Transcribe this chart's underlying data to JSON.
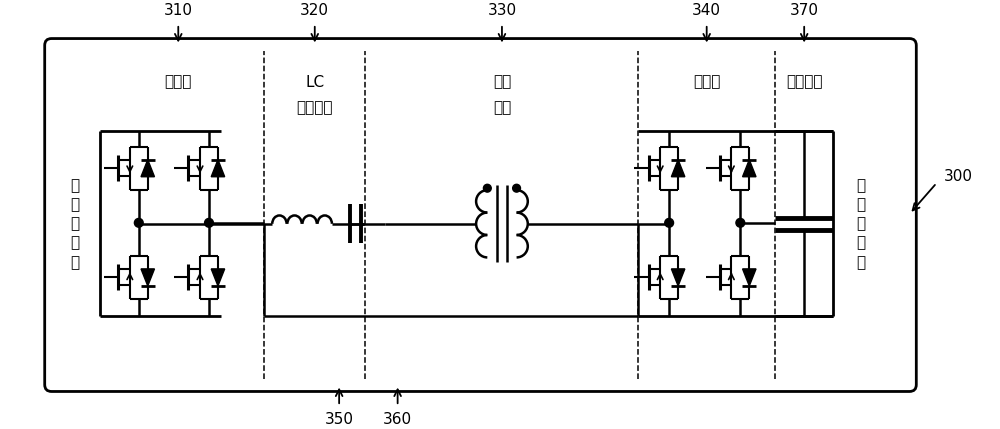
{
  "bg_color": "#ffffff",
  "text_inverter": "逆变器",
  "text_lc_1": "LC",
  "text_lc_2": "谐振环节",
  "text_mf_1": "中频",
  "text_mf_2": "变器",
  "text_rectifier": "整流器",
  "text_first_cap": "第一电容",
  "text_dc_in": "直\n流\n输\n入\n端",
  "text_dc_out": "直\n流\n输\n出\n端",
  "label_310": "310",
  "label_320": "320",
  "label_330": "330",
  "label_340": "340",
  "label_350": "350",
  "label_360": "360",
  "label_370": "370",
  "label_300": "300"
}
